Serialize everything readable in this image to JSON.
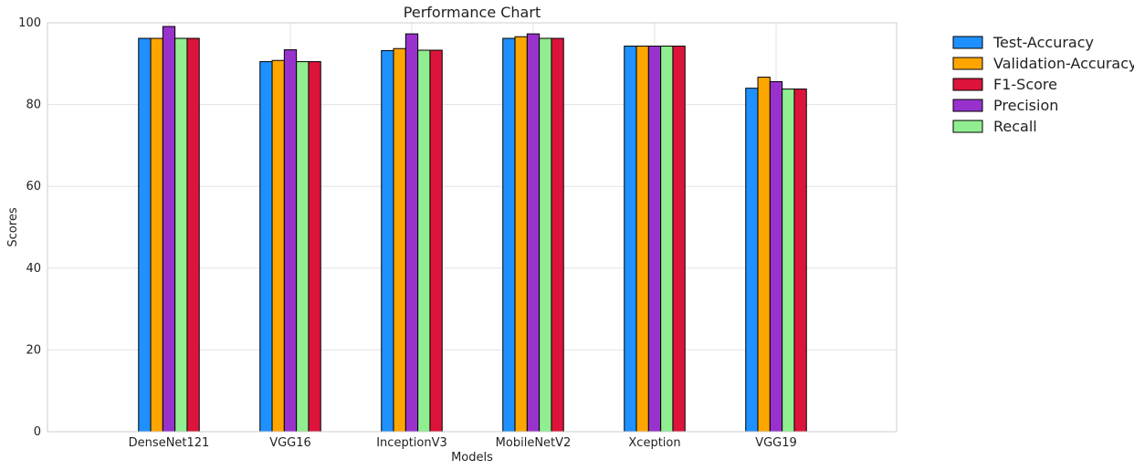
{
  "chart_data": {
    "type": "bar",
    "title": "Performance Chart",
    "xlabel": "Models",
    "ylabel": "Scores",
    "ylim": [
      0,
      100
    ],
    "yticks": [
      0,
      20,
      40,
      60,
      80,
      100
    ],
    "grid": true,
    "legend_position": "outside-top-right",
    "categories": [
      "DenseNet121",
      "VGG16",
      "InceptionV3",
      "MobileNetV2",
      "Xception",
      "VGG19"
    ],
    "series": [
      {
        "name": "Test-Accuracy",
        "color": "#1e90ff",
        "values": [
          96.2,
          90.5,
          93.2,
          96.2,
          94.3,
          84.0
        ]
      },
      {
        "name": "Validation-Accuracy",
        "color": "#ffa500",
        "values": [
          96.2,
          90.8,
          93.7,
          96.6,
          94.3,
          86.7
        ]
      },
      {
        "name": "Precision",
        "color": "#9932cc",
        "values": [
          99.1,
          93.4,
          97.3,
          97.3,
          94.3,
          85.6
        ]
      },
      {
        "name": "Recall",
        "color": "#90ee90",
        "values": [
          96.2,
          90.5,
          93.3,
          96.2,
          94.3,
          83.8
        ]
      },
      {
        "name": "F1-Score",
        "color": "#dc143c",
        "values": [
          96.2,
          90.5,
          93.3,
          96.2,
          94.3,
          83.8
        ]
      }
    ],
    "legend_order": [
      "Test-Accuracy",
      "Validation-Accuracy",
      "F1-Score",
      "Precision",
      "Recall"
    ]
  }
}
